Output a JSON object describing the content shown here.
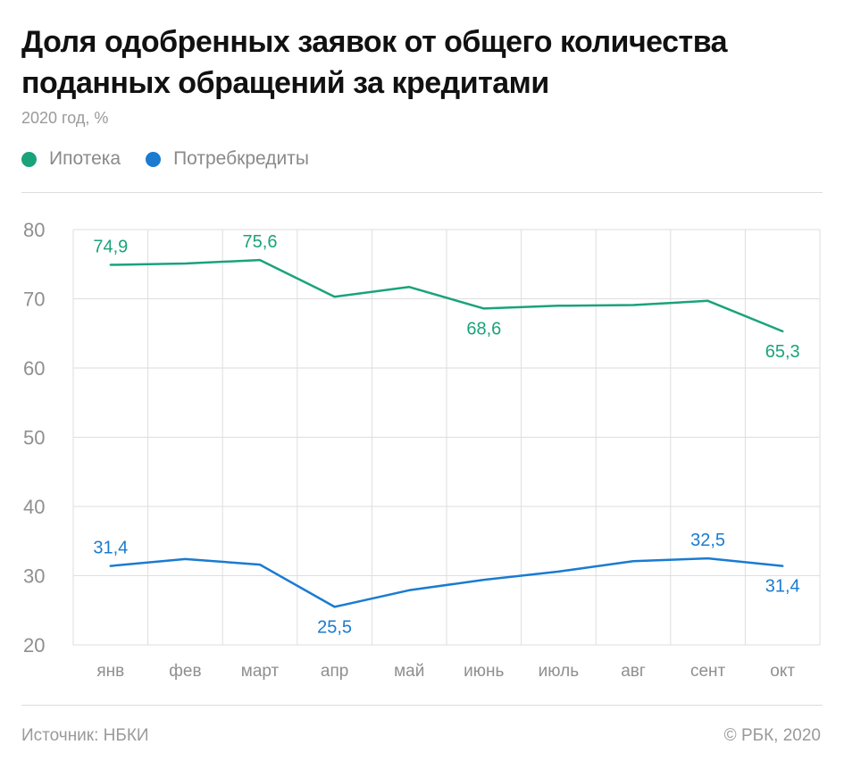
{
  "header": {
    "title": "Доля одобренных заявок от общего количества поданных обращений за кредитами",
    "subtitle": "2020 год, %"
  },
  "legend": [
    {
      "label": "Ипотека",
      "color": "#1aa37a"
    },
    {
      "label": "Потребкредиты",
      "color": "#1a7bd1"
    }
  ],
  "footer": {
    "source": "Источник:  НБКИ",
    "copyright": "© РБК, 2020"
  },
  "chart_data": {
    "type": "line",
    "title": "Доля одобренных заявок от общего количества поданных обращений за кредитами",
    "subtitle": "2020 год, %",
    "categories": [
      "янв",
      "фев",
      "март",
      "апр",
      "май",
      "июнь",
      "июль",
      "авг",
      "сент",
      "окт"
    ],
    "ylim": [
      20,
      80
    ],
    "yticks": [
      20,
      30,
      40,
      50,
      60,
      70,
      80
    ],
    "grid": true,
    "legend_position": "top-left",
    "series": [
      {
        "name": "Ипотека",
        "color": "#1aa37a",
        "values": [
          74.9,
          75.1,
          75.6,
          70.3,
          71.7,
          68.6,
          69.0,
          69.1,
          69.7,
          65.3
        ],
        "labels": [
          {
            "index": 0,
            "text": "74,9",
            "position": "above"
          },
          {
            "index": 2,
            "text": "75,6",
            "position": "above"
          },
          {
            "index": 5,
            "text": "68,6",
            "position": "below"
          },
          {
            "index": 9,
            "text": "65,3",
            "position": "below"
          }
        ]
      },
      {
        "name": "Потребкредиты",
        "color": "#1a7bd1",
        "values": [
          31.4,
          32.4,
          31.6,
          25.5,
          27.9,
          29.4,
          30.6,
          32.1,
          32.5,
          31.4
        ],
        "labels": [
          {
            "index": 0,
            "text": "31,4",
            "position": "above"
          },
          {
            "index": 3,
            "text": "25,5",
            "position": "below"
          },
          {
            "index": 8,
            "text": "32,5",
            "position": "above"
          },
          {
            "index": 9,
            "text": "31,4",
            "position": "below"
          }
        ]
      }
    ]
  }
}
